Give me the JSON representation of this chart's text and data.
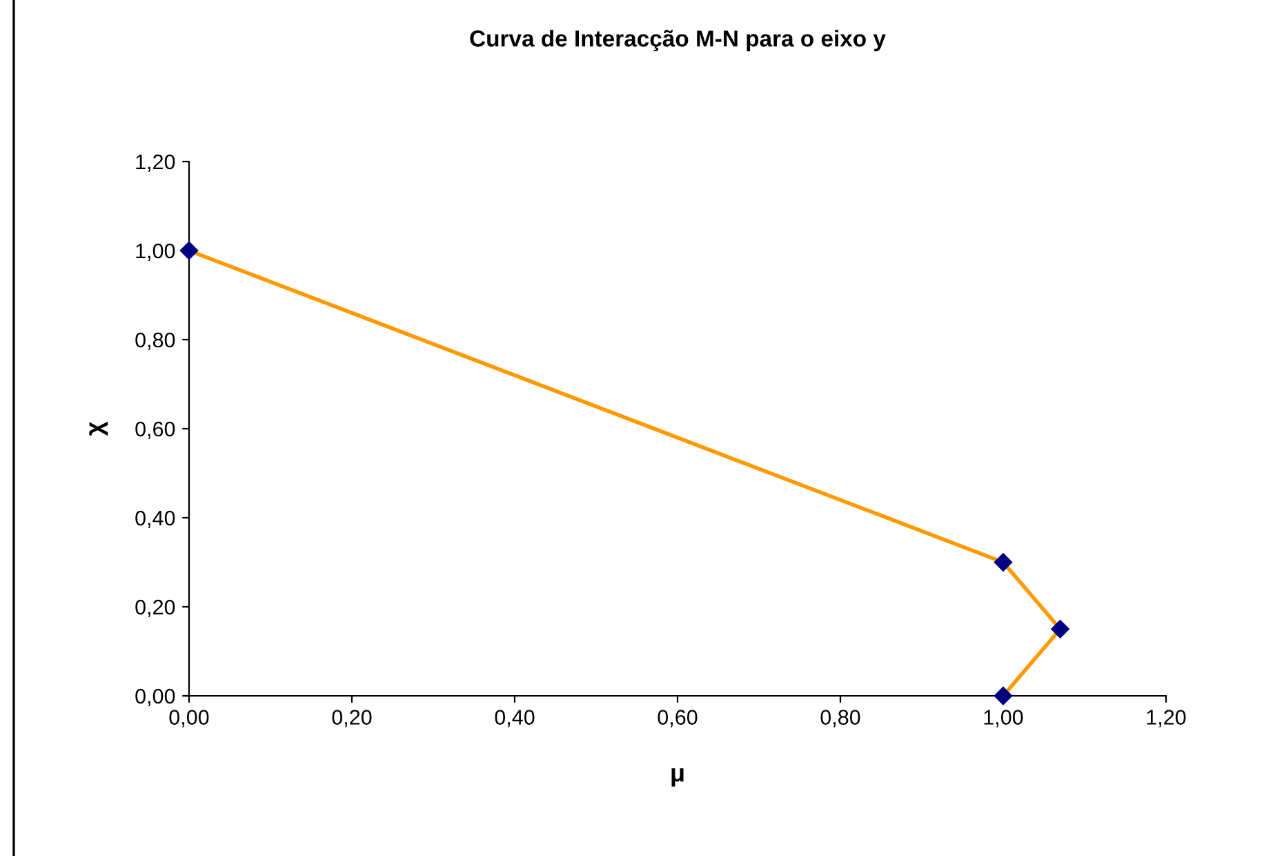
{
  "chart_data": {
    "type": "line",
    "title": "Curva de Interacção M-N para o eixo y",
    "xlabel": "μ",
    "ylabel": "χ",
    "x": [
      0,
      1,
      1.07,
      1
    ],
    "series": [
      {
        "color": "#ff9900",
        "colors": [
          "#000080",
          "#000080",
          "#000080",
          "#000080"
        ],
        "values": [
          1,
          0.3,
          0.15,
          0
        ]
      }
    ],
    "marker": "diamond",
    "line_style": "solid",
    "grid": false,
    "legend": false,
    "xlim": [
      0,
      1.2
    ],
    "ylim": [
      0,
      1.2
    ],
    "xticks": [
      {
        "value": 0,
        "label": "0,00"
      },
      {
        "value": 0.2,
        "label": "0,20"
      },
      {
        "value": 0.4,
        "label": "0,40"
      },
      {
        "value": 0.6,
        "label": "0,60"
      },
      {
        "value": 0.8,
        "label": "0,80"
      },
      {
        "value": 1,
        "label": "1,00"
      },
      {
        "value": 1.2,
        "label": "1,20"
      }
    ],
    "yticks": [
      {
        "value": 0,
        "label": "0,00"
      },
      {
        "value": 0.2,
        "label": "0,20"
      },
      {
        "value": 0.4,
        "label": "0,40"
      },
      {
        "value": 0.6,
        "label": "0,60"
      },
      {
        "value": 0.8,
        "label": "0,80"
      },
      {
        "value": 1,
        "label": "1,00"
      },
      {
        "value": 1.2,
        "label": "1,20"
      }
    ]
  }
}
